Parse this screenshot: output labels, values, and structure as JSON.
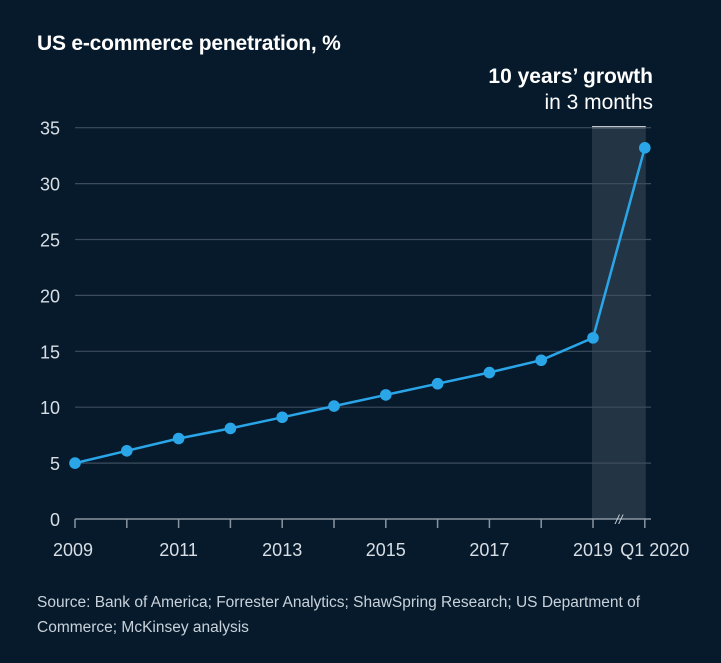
{
  "title": "US e-commerce penetration, %",
  "annotation": {
    "title": "10 years’ growth",
    "subtitle": "in 3 months"
  },
  "source": "Source: Bank of America; Forrester Analytics; ShawSpring Research; US Department of Commerce; McKinsey analysis",
  "axis_break_symbol": "//",
  "colors": {
    "background": "#061a2c",
    "line": "#2aa6e8",
    "highlight": "#233445",
    "grid": "#3c4c5c",
    "text": "#ffffff",
    "tick_text": "#d8dee4"
  },
  "chart_data": {
    "type": "line",
    "title": "US e-commerce penetration, %",
    "x": [
      "2009",
      "2010",
      "2011",
      "2012",
      "2013",
      "2014",
      "2015",
      "2016",
      "2017",
      "2018",
      "2019",
      "Q1 2020"
    ],
    "x_tick_labels": [
      "2009",
      "",
      "2011",
      "",
      "2013",
      "",
      "2015",
      "",
      "2017",
      "",
      "2019",
      "Q1 2020"
    ],
    "series": [
      {
        "values": [
          5.0,
          6.1,
          7.2,
          8.1,
          9.1,
          10.1,
          11.1,
          12.1,
          13.1,
          14.2,
          16.2,
          33.2
        ]
      }
    ],
    "ylim": [
      0,
      35
    ],
    "yticks": [
      0,
      5,
      10,
      15,
      20,
      25,
      30,
      35
    ],
    "grid": true,
    "highlight_range": [
      "2019",
      "Q1 2020"
    ],
    "axis_break_between": [
      "2019",
      "Q1 2020"
    ],
    "xlabel": "",
    "ylabel": ""
  }
}
